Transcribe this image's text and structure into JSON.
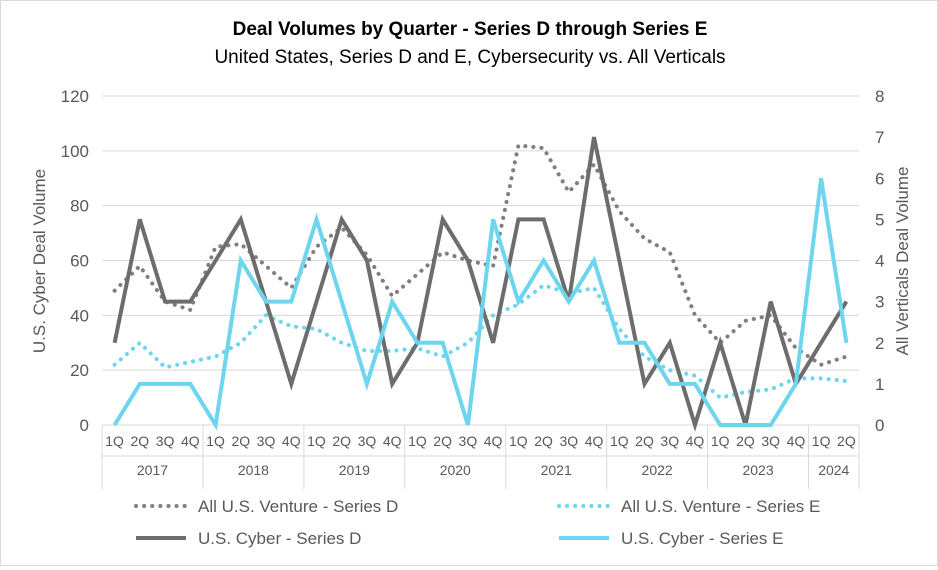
{
  "chart_data": {
    "type": "line",
    "title": "Deal Volumes by Quarter - Series D through Series E",
    "subtitle": "United States, Series D and E, Cybersecurity vs. All Verticals",
    "ylabel": "U.S. Cyber Deal Volume",
    "y2label": "All Verticals Deal Volume",
    "ylim": [
      0,
      120
    ],
    "y2lim": [
      0,
      8
    ],
    "yticks": [
      0,
      20,
      40,
      60,
      80,
      100,
      120
    ],
    "y2ticks": [
      0,
      1,
      2,
      3,
      4,
      5,
      6,
      7,
      8
    ],
    "grid": true,
    "legend_position": "bottom",
    "categories": [
      "1Q",
      "2Q",
      "3Q",
      "4Q",
      "1Q",
      "2Q",
      "3Q",
      "4Q",
      "1Q",
      "2Q",
      "3Q",
      "4Q",
      "1Q",
      "2Q",
      "3Q",
      "4Q",
      "1Q",
      "2Q",
      "3Q",
      "4Q",
      "1Q",
      "2Q",
      "3Q",
      "4Q",
      "1Q",
      "2Q",
      "3Q",
      "4Q",
      "1Q",
      "2Q"
    ],
    "year_groups": [
      {
        "label": "2017",
        "count": 4
      },
      {
        "label": "2018",
        "count": 4
      },
      {
        "label": "2019",
        "count": 4
      },
      {
        "label": "2020",
        "count": 4
      },
      {
        "label": "2021",
        "count": 4
      },
      {
        "label": "2022",
        "count": 4
      },
      {
        "label": "2023",
        "count": 4
      },
      {
        "label": "2024",
        "count": 2
      }
    ],
    "series": [
      {
        "name": "All U.S. Venture - Series D",
        "axis": "left",
        "style": "dotted",
        "color": "#7f7f7f",
        "values": [
          49,
          58,
          45,
          42,
          65,
          66,
          58,
          50,
          65,
          72,
          62,
          47,
          55,
          63,
          60,
          58,
          102,
          101,
          85,
          95,
          78,
          68,
          63,
          40,
          30,
          38,
          40,
          28,
          22,
          25
        ]
      },
      {
        "name": "All U.S. Venture - Series E",
        "axis": "left",
        "style": "dotted",
        "color": "#6dd5ed",
        "values": [
          22,
          30,
          21,
          23,
          25,
          30,
          40,
          36,
          35,
          30,
          27,
          27,
          28,
          25,
          30,
          40,
          44,
          51,
          48,
          50,
          35,
          25,
          20,
          18,
          10,
          12,
          13,
          17,
          17,
          16
        ]
      },
      {
        "name": "U.S. Cyber - Series D",
        "axis": "right",
        "style": "solid",
        "color": "#6d6d6d",
        "values": [
          2,
          5,
          3,
          3,
          4,
          5,
          3,
          1,
          3,
          5,
          4,
          1,
          2,
          5,
          4,
          2,
          5,
          5,
          3,
          7,
          4,
          1,
          2,
          0,
          2,
          0,
          3,
          1,
          2,
          3
        ]
      },
      {
        "name": "U.S. Cyber - Series E",
        "axis": "right",
        "style": "solid",
        "color": "#6dd5ed",
        "values": [
          0,
          1,
          1,
          1,
          0,
          4,
          3,
          3,
          5,
          3,
          1,
          3,
          2,
          2,
          0,
          5,
          3,
          4,
          3,
          4,
          2,
          2,
          1,
          1,
          0,
          0,
          0,
          1,
          6,
          2
        ]
      }
    ]
  }
}
